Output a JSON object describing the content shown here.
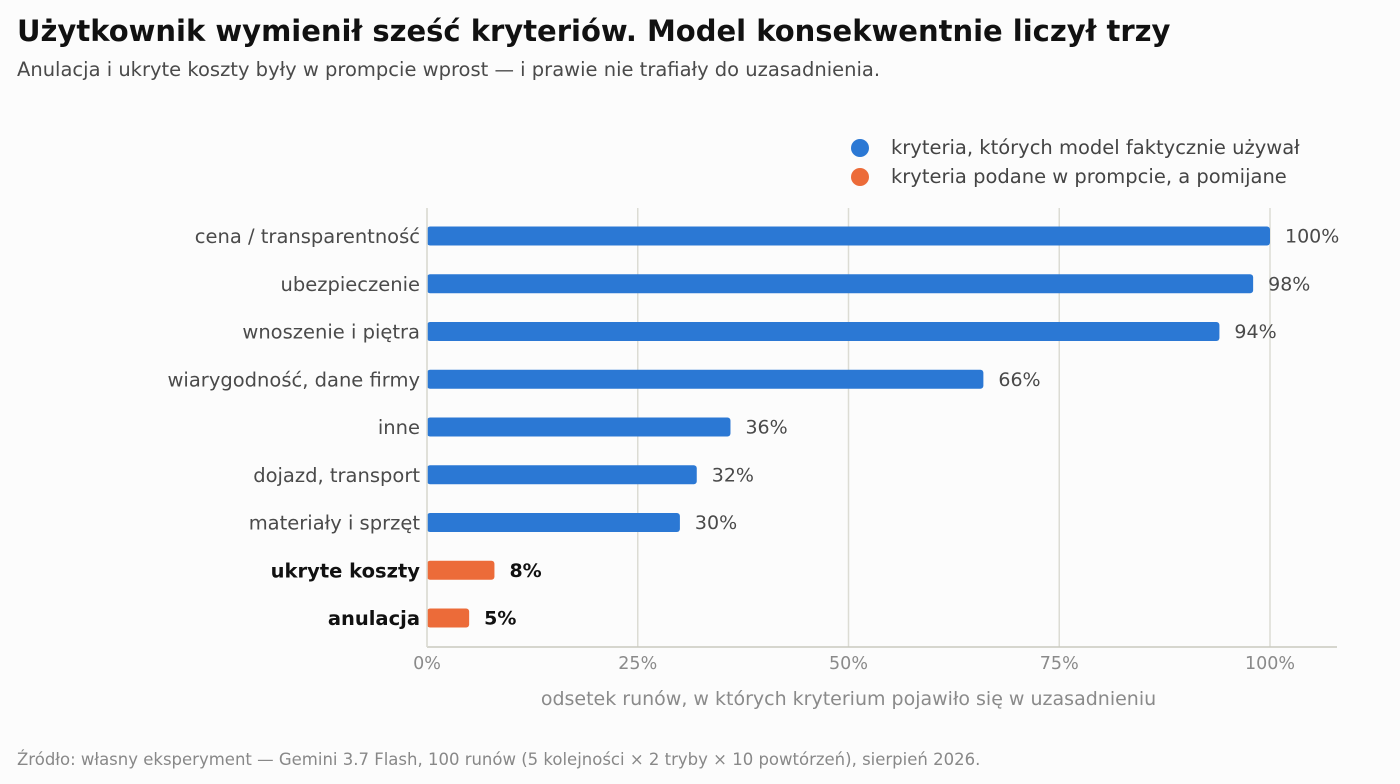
{
  "title": "Użytkownik wymienił sześć kryteriów. Model konsekwentnie liczył trzy",
  "subtitle": "Anulacja i ukryte koszty były w prompcie wprost — i prawie nie trafiały do uzasadnienia.",
  "legend": [
    {
      "label": "kryteria, których model faktycznie używał",
      "color": "#2b78d4"
    },
    {
      "label": "kryteria podane w prompcie, a pomijane",
      "color": "#ec6b39"
    }
  ],
  "source": "Źródło: własny eksperyment — Gemini 3.7 Flash, 100 runów (5 kolejności × 2 tryby × 10 powtórzeń), sierpień 2026.",
  "chart_data": {
    "type": "bar",
    "orientation": "horizontal",
    "xlabel": "odsetek runów, w których kryterium pojawiło się w uzasadnieniu",
    "xlim": [
      0,
      100
    ],
    "x_ticks": [
      "0%",
      "25%",
      "50%",
      "75%",
      "100%"
    ],
    "grid": "vertical",
    "legend_position": "top-right",
    "categories": [
      "cena / transparentność",
      "ubezpieczenie",
      "wnoszenie i piętra",
      "wiarygodność, dane firmy",
      "inne",
      "dojazd, transport",
      "materiały i sprzęt",
      "ukryte koszty",
      "anulacja"
    ],
    "values": [
      100,
      98,
      94,
      66,
      36,
      32,
      30,
      8,
      5
    ],
    "value_labels": [
      "100%",
      "98%",
      "94%",
      "66%",
      "36%",
      "32%",
      "30%",
      "8%",
      "5%"
    ],
    "groups": [
      "used",
      "used",
      "used",
      "used",
      "used",
      "used",
      "used",
      "omitted",
      "omitted"
    ],
    "colors": {
      "used": "#2b78d4",
      "omitted": "#ec6b39"
    }
  }
}
